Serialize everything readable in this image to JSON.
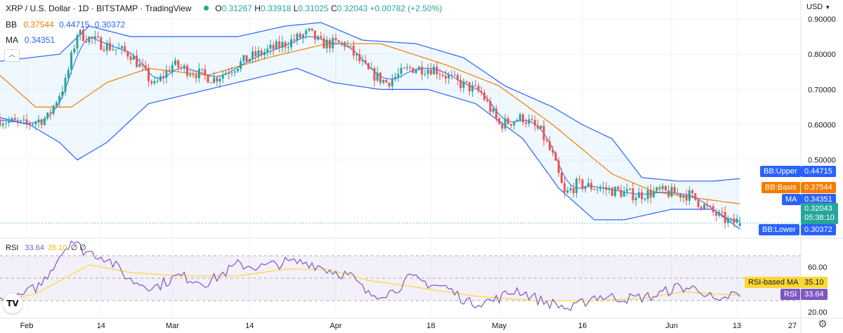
{
  "header": {
    "title": "XRP / U.S. Dollar · 1D · BITSTAMP · TradingView",
    "ohlc": {
      "open_label": "O",
      "open": "0.31267",
      "high_label": "H",
      "high": "0.33918",
      "low_label": "L",
      "low": "0.31025",
      "close_label": "C",
      "close": "0.32043",
      "change": "+0.00782 (+2.50%)"
    },
    "currency": "USD"
  },
  "legend": {
    "bb_label": "BB",
    "bb_basis": "0.37544",
    "bb_upper": "0.44715",
    "bb_lower": "0.30372",
    "ma_label": "MA",
    "ma_value": "0.34351"
  },
  "rsi_legend": {
    "label": "RSI",
    "rsi": "33.64",
    "ma": "35.10",
    "x1": "∅",
    "x2": "∅"
  },
  "tags": {
    "bb_upper": {
      "label": "BB:Upper",
      "value": "0.44715"
    },
    "bb_basis": {
      "label": "BB:Basis",
      "value": "0.37544"
    },
    "ma": {
      "label": "MA",
      "value": "0.34351"
    },
    "price": {
      "value": "0.32043",
      "countdown": "05:38:10"
    },
    "bb_lower": {
      "label": "BB:Lower",
      "value": "0.30372"
    },
    "rsi_ma": {
      "label": "RSI-based MA",
      "value": "35.10"
    },
    "rsi": {
      "label": "RSI",
      "value": "33.64"
    }
  },
  "colors": {
    "up": "#26a69a",
    "down": "#ef5350",
    "band": "#2962ff",
    "basis": "#f57c00",
    "ma": "#2962ff",
    "rsi": "#7e57c2",
    "rsi_ma": "#fdd835"
  },
  "chart_data": {
    "type": "candlestick",
    "price_axis": {
      "ticks": [
        "0.90000",
        "0.80000",
        "0.70000",
        "0.60000",
        "0.50000"
      ],
      "ylim": [
        0.28,
        0.93
      ]
    },
    "rsi_axis": {
      "ticks": [
        "60.00",
        "20.00"
      ],
      "ylim": [
        15,
        85
      ],
      "bands": [
        30,
        70
      ]
    },
    "x_ticks": [
      "Feb",
      "14",
      "Mar",
      "14",
      "Apr",
      "18",
      "May",
      "16",
      "Jun",
      "13",
      "27"
    ],
    "waypoints": {
      "price": [
        [
          0,
          0.615
        ],
        [
          8,
          0.6
        ],
        [
          16,
          0.62
        ],
        [
          22,
          0.72
        ],
        [
          26,
          0.86
        ],
        [
          34,
          0.83
        ],
        [
          44,
          0.8
        ],
        [
          52,
          0.71
        ],
        [
          58,
          0.77
        ],
        [
          72,
          0.73
        ],
        [
          84,
          0.79
        ],
        [
          96,
          0.83
        ],
        [
          104,
          0.86
        ],
        [
          108,
          0.83
        ],
        [
          116,
          0.83
        ],
        [
          124,
          0.75
        ],
        [
          130,
          0.72
        ],
        [
          138,
          0.76
        ],
        [
          146,
          0.76
        ],
        [
          154,
          0.72
        ],
        [
          162,
          0.69
        ],
        [
          168,
          0.6
        ],
        [
          176,
          0.62
        ],
        [
          182,
          0.58
        ],
        [
          186,
          0.51
        ],
        [
          190,
          0.4
        ],
        [
          194,
          0.43
        ],
        [
          202,
          0.42
        ],
        [
          214,
          0.4
        ],
        [
          222,
          0.41
        ],
        [
          232,
          0.4
        ],
        [
          240,
          0.35
        ],
        [
          246,
          0.32
        ],
        [
          249,
          0.33
        ]
      ],
      "rsi": [
        [
          0,
          30
        ],
        [
          6,
          32
        ],
        [
          14,
          45
        ],
        [
          20,
          70
        ],
        [
          24,
          84
        ],
        [
          28,
          75
        ],
        [
          36,
          68
        ],
        [
          44,
          48
        ],
        [
          52,
          42
        ],
        [
          60,
          52
        ],
        [
          70,
          46
        ],
        [
          80,
          62
        ],
        [
          88,
          60
        ],
        [
          96,
          64
        ],
        [
          104,
          64
        ],
        [
          110,
          58
        ],
        [
          118,
          52
        ],
        [
          124,
          35
        ],
        [
          132,
          38
        ],
        [
          138,
          50
        ],
        [
          146,
          44
        ],
        [
          150,
          42
        ],
        [
          158,
          28
        ],
        [
          166,
          30
        ],
        [
          174,
          40
        ],
        [
          182,
          30
        ],
        [
          188,
          26
        ],
        [
          192,
          22
        ],
        [
          200,
          34
        ],
        [
          212,
          32
        ],
        [
          220,
          34
        ],
        [
          228,
          42
        ],
        [
          236,
          40
        ],
        [
          242,
          26
        ],
        [
          246,
          36
        ],
        [
          249,
          33.64
        ]
      ],
      "bb_upper": [
        [
          0,
          0.78
        ],
        [
          20,
          0.8
        ],
        [
          30,
          0.88
        ],
        [
          44,
          0.85
        ],
        [
          60,
          0.85
        ],
        [
          80,
          0.85
        ],
        [
          96,
          0.88
        ],
        [
          108,
          0.89
        ],
        [
          122,
          0.84
        ],
        [
          140,
          0.83
        ],
        [
          156,
          0.79
        ],
        [
          170,
          0.71
        ],
        [
          186,
          0.65
        ],
        [
          196,
          0.6
        ],
        [
          206,
          0.56
        ],
        [
          216,
          0.45
        ],
        [
          228,
          0.44
        ],
        [
          240,
          0.44
        ],
        [
          249,
          0.447
        ]
      ],
      "bb_lower": [
        [
          0,
          0.62
        ],
        [
          10,
          0.6
        ],
        [
          20,
          0.55
        ],
        [
          26,
          0.5
        ],
        [
          36,
          0.55
        ],
        [
          50,
          0.66
        ],
        [
          60,
          0.68
        ],
        [
          80,
          0.72
        ],
        [
          100,
          0.76
        ],
        [
          112,
          0.72
        ],
        [
          128,
          0.7
        ],
        [
          144,
          0.7
        ],
        [
          160,
          0.66
        ],
        [
          176,
          0.56
        ],
        [
          188,
          0.42
        ],
        [
          200,
          0.33
        ],
        [
          210,
          0.33
        ],
        [
          226,
          0.36
        ],
        [
          240,
          0.36
        ],
        [
          249,
          0.3037
        ]
      ],
      "bb_basis": [
        [
          0,
          0.74
        ],
        [
          12,
          0.65
        ],
        [
          24,
          0.65
        ],
        [
          36,
          0.72
        ],
        [
          50,
          0.76
        ],
        [
          70,
          0.74
        ],
        [
          90,
          0.79
        ],
        [
          110,
          0.83
        ],
        [
          128,
          0.83
        ],
        [
          150,
          0.77
        ],
        [
          168,
          0.71
        ],
        [
          186,
          0.6
        ],
        [
          206,
          0.46
        ],
        [
          220,
          0.41
        ],
        [
          236,
          0.39
        ],
        [
          249,
          0.3754
        ]
      ],
      "rsi_ma": [
        [
          0,
          30
        ],
        [
          12,
          36
        ],
        [
          30,
          62
        ],
        [
          44,
          55
        ],
        [
          60,
          52
        ],
        [
          80,
          52
        ],
        [
          96,
          58
        ],
        [
          110,
          58
        ],
        [
          124,
          48
        ],
        [
          140,
          42
        ],
        [
          160,
          34
        ],
        [
          180,
          30
        ],
        [
          200,
          30
        ],
        [
          216,
          32
        ],
        [
          230,
          38
        ],
        [
          240,
          36
        ],
        [
          249,
          35.1
        ]
      ]
    },
    "last": {
      "open": 0.31267,
      "high": 0.33918,
      "low": 0.31025,
      "close": 0.32043
    }
  }
}
